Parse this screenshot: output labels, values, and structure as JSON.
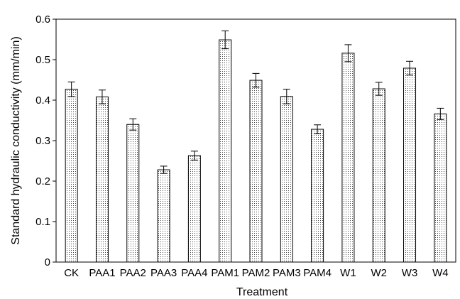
{
  "chart_data": {
    "type": "bar",
    "xlabel": "Treatment",
    "ylabel": "Standard hydraulic conductivity (mm/min)",
    "ylim": [
      0,
      0.6
    ],
    "yticks": [
      0,
      0.1,
      0.2,
      0.3,
      0.4,
      0.5,
      0.6
    ],
    "ytick_labels": [
      "0",
      "0.1",
      "0.2",
      "0.3",
      "0.4",
      "0.5",
      "0.6"
    ],
    "categories": [
      "CK",
      "PAA1",
      "PAA2",
      "PAA3",
      "PAA4",
      "PAM1",
      "PAM2",
      "PAM3",
      "PAM4",
      "W1",
      "W2",
      "W3",
      "W4"
    ],
    "values": [
      0.427,
      0.408,
      0.34,
      0.228,
      0.263,
      0.549,
      0.449,
      0.409,
      0.328,
      0.516,
      0.428,
      0.479,
      0.366
    ],
    "errors": [
      0.018,
      0.017,
      0.014,
      0.009,
      0.011,
      0.022,
      0.017,
      0.018,
      0.011,
      0.021,
      0.016,
      0.017,
      0.014
    ],
    "bar_pattern": "dotted",
    "grid": false,
    "legend": "none"
  }
}
